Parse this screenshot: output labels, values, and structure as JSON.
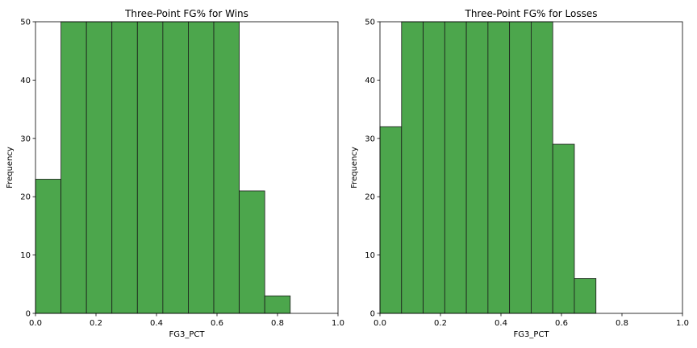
{
  "chart_data": [
    {
      "type": "bar",
      "title": "Three-Point FG% for Wins",
      "xlabel": "FG3_PCT",
      "ylabel": "Frequency",
      "xlim": [
        0.0,
        1.0
      ],
      "ylim": [
        0,
        50
      ],
      "xticks": [
        "0.0",
        "0.2",
        "0.4",
        "0.6",
        "0.8",
        "1.0"
      ],
      "yticks": [
        "0",
        "10",
        "20",
        "30",
        "40",
        "50"
      ],
      "bar_color": "#4ca64c",
      "edge_color": "#1a1a1a",
      "grid": false,
      "bins": [
        {
          "x0": 0.0,
          "x1": 0.0842,
          "value": 23
        },
        {
          "x0": 0.0842,
          "x1": 0.1684,
          "value": 50
        },
        {
          "x0": 0.1684,
          "x1": 0.2526,
          "value": 50
        },
        {
          "x0": 0.2526,
          "x1": 0.3368,
          "value": 50
        },
        {
          "x0": 0.3368,
          "x1": 0.421,
          "value": 50
        },
        {
          "x0": 0.421,
          "x1": 0.5052,
          "value": 50
        },
        {
          "x0": 0.5052,
          "x1": 0.5894,
          "value": 50
        },
        {
          "x0": 0.5894,
          "x1": 0.6736,
          "value": 50
        },
        {
          "x0": 0.6736,
          "x1": 0.7578,
          "value": 21
        },
        {
          "x0": 0.7578,
          "x1": 0.842,
          "value": 3
        }
      ]
    },
    {
      "type": "bar",
      "title": "Three-Point FG% for Losses",
      "xlabel": "FG3_PCT",
      "ylabel": "Frequency",
      "xlim": [
        0.0,
        1.0
      ],
      "ylim": [
        0,
        50
      ],
      "xticks": [
        "0.0",
        "0.2",
        "0.4",
        "0.6",
        "0.8",
        "1.0"
      ],
      "yticks": [
        "0",
        "10",
        "20",
        "30",
        "40",
        "50"
      ],
      "bar_color": "#4ca64c",
      "edge_color": "#1a1a1a",
      "grid": false,
      "bins": [
        {
          "x0": 0.0,
          "x1": 0.0714,
          "value": 32
        },
        {
          "x0": 0.0714,
          "x1": 0.1428,
          "value": 50
        },
        {
          "x0": 0.1428,
          "x1": 0.2142,
          "value": 50
        },
        {
          "x0": 0.2142,
          "x1": 0.2856,
          "value": 50
        },
        {
          "x0": 0.2856,
          "x1": 0.357,
          "value": 50
        },
        {
          "x0": 0.357,
          "x1": 0.4284,
          "value": 50
        },
        {
          "x0": 0.4284,
          "x1": 0.4998,
          "value": 50
        },
        {
          "x0": 0.4998,
          "x1": 0.5712,
          "value": 50
        },
        {
          "x0": 0.5712,
          "x1": 0.6426,
          "value": 29
        },
        {
          "x0": 0.6426,
          "x1": 0.714,
          "value": 6
        }
      ]
    }
  ]
}
